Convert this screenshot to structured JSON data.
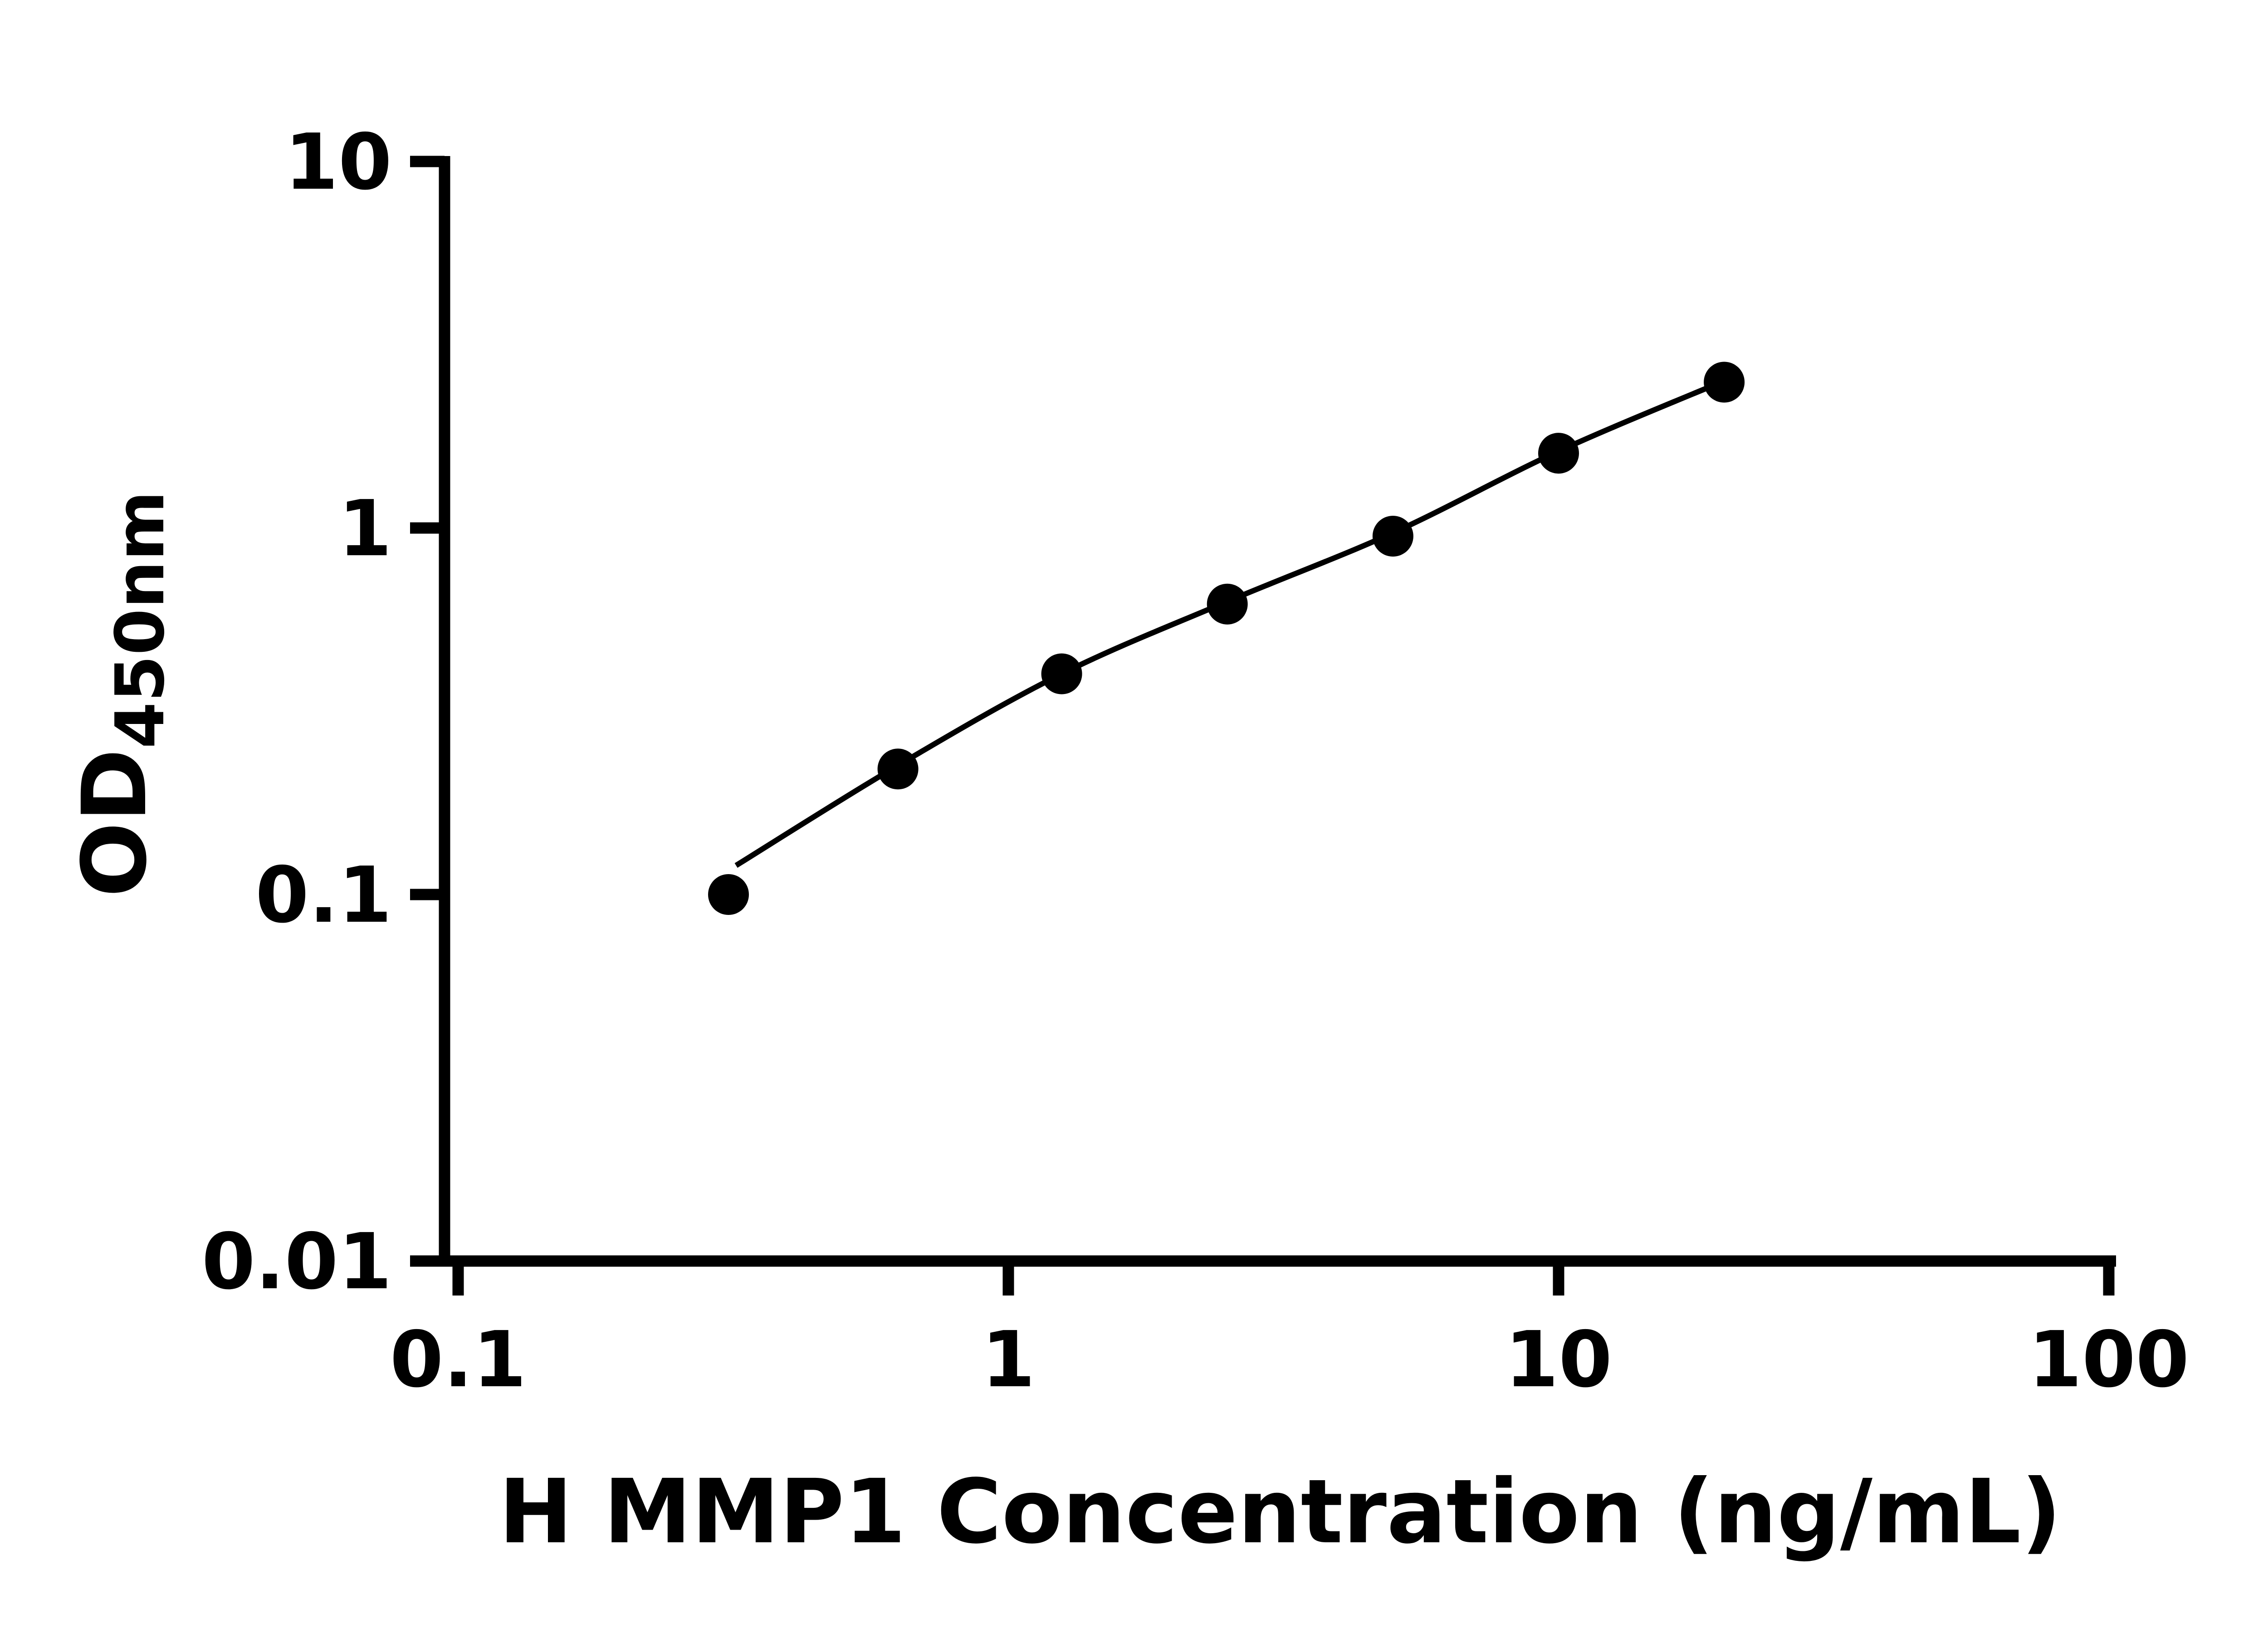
{
  "chart_data": {
    "type": "scatter",
    "title": "",
    "xlabel": "H MMP1 Concentration (ng/mL)",
    "ylabel": "OD450nm",
    "ylabel_main": "OD",
    "ylabel_sub": "450nm",
    "x_scale": "log",
    "y_scale": "log",
    "xlim": [
      0.1,
      100
    ],
    "ylim": [
      0.01,
      10
    ],
    "x_ticks": [
      {
        "value": 0.1,
        "label": "0.1"
      },
      {
        "value": 1,
        "label": "1"
      },
      {
        "value": 10,
        "label": "10"
      },
      {
        "value": 100,
        "label": "100"
      }
    ],
    "y_ticks": [
      {
        "value": 0.01,
        "label": "0.01"
      },
      {
        "value": 0.1,
        "label": "0.1"
      },
      {
        "value": 1,
        "label": "1"
      },
      {
        "value": 10,
        "label": "10"
      }
    ],
    "grid": false,
    "legend": false,
    "background_color": "#ffffff",
    "axis_color": "#000000",
    "marker_color": "#000000",
    "line_color": "#000000",
    "points": [
      {
        "x": 0.31,
        "y": 0.1
      },
      {
        "x": 0.63,
        "y": 0.22
      },
      {
        "x": 1.25,
        "y": 0.4
      },
      {
        "x": 2.5,
        "y": 0.62
      },
      {
        "x": 5,
        "y": 0.95
      },
      {
        "x": 10,
        "y": 1.6
      },
      {
        "x": 20,
        "y": 2.5
      }
    ],
    "fit_curve_points": [
      {
        "x": 0.32,
        "y": 0.12
      },
      {
        "x": 0.63,
        "y": 0.225
      },
      {
        "x": 1.25,
        "y": 0.4
      },
      {
        "x": 2.5,
        "y": 0.63
      },
      {
        "x": 5,
        "y": 0.97
      },
      {
        "x": 10,
        "y": 1.62
      },
      {
        "x": 20,
        "y": 2.52
      }
    ]
  }
}
